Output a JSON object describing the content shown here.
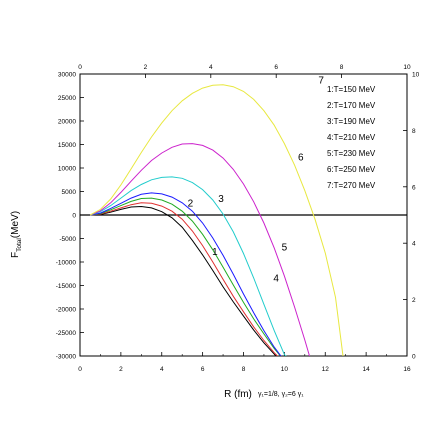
{
  "chart_data": {
    "type": "line",
    "xlabel": "R (fm)",
    "ylabel": "F",
    "ylabel_sub": "Total",
    "ylabel_unit": "(MeV)",
    "params_note": "γ₁=1/8, γ₂=6 γ₁",
    "xlim": [
      0,
      16
    ],
    "ylim": [
      -30000,
      30000
    ],
    "xticks": [
      0,
      2,
      4,
      6,
      8,
      10,
      12,
      14,
      16
    ],
    "yticks": [
      30000,
      25000,
      20000,
      15000,
      10000,
      5000,
      0,
      -5000,
      -10000,
      -15000,
      -20000,
      -25000,
      -30000
    ],
    "top_xlim": [
      0,
      10
    ],
    "top_xticks": [
      0,
      2,
      4,
      6,
      8,
      10
    ],
    "right_ylim": [
      0,
      10
    ],
    "right_yticks": [
      0,
      2,
      4,
      6,
      8,
      10
    ],
    "legend_position": "top-right",
    "series": [
      {
        "name": "1:T=150 MeV",
        "label": "1",
        "color": "#000000",
        "x": [
          0.5,
          1.0,
          1.5,
          2.0,
          2.5,
          3.0,
          3.5,
          4.0,
          4.5,
          5.0,
          5.5,
          6.0,
          6.5,
          7.0,
          7.5,
          8.0,
          8.5,
          9.0,
          9.5,
          9.8
        ],
        "y": [
          0,
          100,
          600,
          1200,
          1700,
          1800,
          1500,
          700,
          -600,
          -2600,
          -5400,
          -8500,
          -11800,
          -15300,
          -18500,
          -21500,
          -24500,
          -27200,
          -29600,
          -31000
        ]
      },
      {
        "name": "2:T=170 MeV",
        "label": "2",
        "color": "#e03030",
        "x": [
          0.5,
          1.0,
          1.5,
          2.0,
          2.5,
          3.0,
          3.5,
          4.0,
          4.5,
          5.0,
          5.5,
          6.0,
          6.5,
          7.0,
          7.5,
          8.0,
          8.5,
          9.0,
          9.5,
          9.9
        ],
        "y": [
          0,
          200,
          800,
          1500,
          2200,
          2600,
          2500,
          1900,
          800,
          -900,
          -3400,
          -6500,
          -10000,
          -13700,
          -17300,
          -20600,
          -23800,
          -26700,
          -29300,
          -31000
        ]
      },
      {
        "name": "3:T=190 MeV",
        "label": "3",
        "color": "#22aa22",
        "x": [
          0.5,
          1.0,
          1.5,
          2.0,
          2.5,
          3.0,
          3.5,
          4.0,
          4.5,
          5.0,
          5.5,
          6.0,
          6.5,
          7.0,
          7.5,
          8.0,
          8.5,
          9.0,
          9.5,
          10.0
        ],
        "y": [
          0,
          300,
          1100,
          2000,
          2900,
          3500,
          3600,
          3200,
          2300,
          800,
          -1300,
          -4100,
          -7400,
          -11100,
          -14900,
          -18600,
          -22100,
          -25300,
          -28400,
          -31000
        ]
      },
      {
        "name": "4:T=210 MeV",
        "label": "4",
        "color": "#1a1aff",
        "x": [
          0.5,
          1.0,
          1.5,
          2.0,
          2.5,
          3.0,
          3.5,
          4.0,
          4.5,
          5.0,
          5.5,
          6.0,
          6.5,
          7.0,
          7.5,
          8.0,
          8.5,
          9.0,
          9.5,
          10.0
        ],
        "y": [
          0,
          400,
          1400,
          2500,
          3600,
          4400,
          4700,
          4500,
          3800,
          2600,
          800,
          -1700,
          -4900,
          -8600,
          -12600,
          -16800,
          -20800,
          -24600,
          -28100,
          -31000
        ]
      },
      {
        "name": "5:T=230 MeV",
        "label": "5",
        "color": "#22cccc",
        "x": [
          0.5,
          1.0,
          1.5,
          2.0,
          2.5,
          3.0,
          3.5,
          4.0,
          4.5,
          5.0,
          5.5,
          6.0,
          6.5,
          7.0,
          7.5,
          8.0,
          8.5,
          9.0,
          9.5,
          10.0,
          10.3
        ],
        "y": [
          0,
          700,
          2000,
          3600,
          5200,
          6500,
          7500,
          8000,
          8100,
          7800,
          6900,
          5400,
          3200,
          200,
          -3600,
          -8200,
          -13400,
          -19000,
          -24600,
          -29700,
          -31000
        ]
      },
      {
        "name": "6:T=250 MeV",
        "label": "6",
        "color": "#cc22cc",
        "x": [
          0.5,
          1.0,
          1.5,
          2.0,
          2.5,
          3.0,
          3.5,
          4.0,
          4.5,
          5.0,
          5.5,
          6.0,
          6.5,
          7.0,
          7.5,
          8.0,
          8.5,
          9.0,
          9.5,
          10.0,
          10.5,
          11.0,
          11.3
        ],
        "y": [
          0,
          900,
          2600,
          4800,
          7200,
          9500,
          11600,
          13200,
          14400,
          15100,
          15200,
          14800,
          13800,
          12100,
          9700,
          6600,
          2800,
          -1700,
          -7000,
          -13000,
          -19600,
          -26600,
          -31000
        ]
      },
      {
        "name": "7:T=270 MeV",
        "label": "7",
        "color": "#e8e840",
        "x": [
          0.5,
          1.0,
          1.5,
          2.0,
          2.5,
          3.0,
          3.5,
          4.0,
          4.5,
          5.0,
          5.5,
          6.0,
          6.5,
          7.0,
          7.5,
          8.0,
          8.5,
          9.0,
          9.5,
          10.0,
          10.5,
          11.0,
          11.5,
          12.0,
          12.5,
          12.9
        ],
        "y": [
          0,
          1200,
          3400,
          6400,
          9800,
          13300,
          16600,
          19600,
          22200,
          24300,
          25900,
          27000,
          27600,
          27700,
          27300,
          26300,
          24600,
          22200,
          19100,
          15200,
          10600,
          5200,
          -900,
          -8100,
          -17500,
          -31000
        ]
      }
    ]
  }
}
